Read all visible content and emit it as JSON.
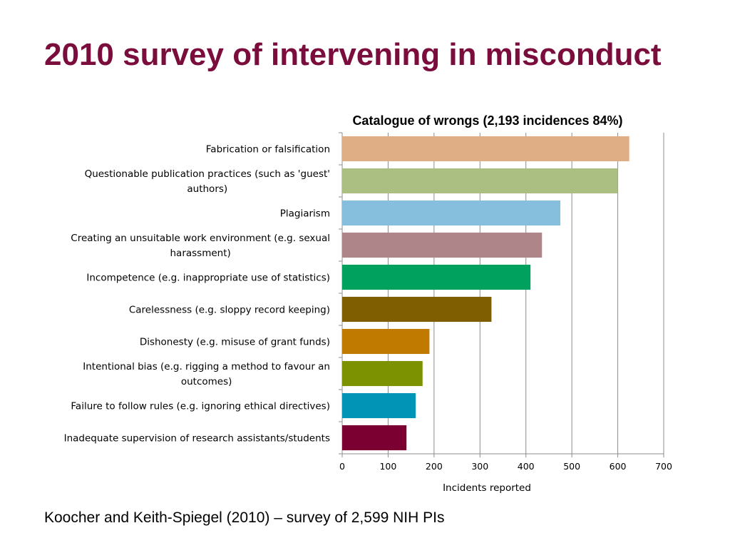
{
  "slide": {
    "title": "2010 survey of intervening in misconduct",
    "footer": "Koocher and Keith-Spiegel (2010) – survey of 2,599 NIH PIs"
  },
  "chart_data": {
    "type": "bar",
    "orientation": "horizontal",
    "title": "Catalogue of wrongs (2,193 incidences 84%)",
    "xlabel": "Incidents reported",
    "ylabel": "",
    "xlim": [
      0,
      700
    ],
    "xticks": [
      0,
      100,
      200,
      300,
      400,
      500,
      600,
      700
    ],
    "grid": "vertical gridlines",
    "legend": "none",
    "categories": [
      [
        "Fabrication or falsification"
      ],
      [
        "Questionable publication practices (such as 'guest'",
        "authors)"
      ],
      [
        "Plagiarism"
      ],
      [
        "Creating an unsuitable work environment (e.g. sexual",
        "harassment)"
      ],
      [
        "Incompetence (e.g. inappropriate use of statistics)"
      ],
      [
        "Carelessness (e.g. sloppy record keeping)"
      ],
      [
        "Dishonesty (e.g. misuse of grant funds)"
      ],
      [
        "Intentional bias (e.g. rigging a method to favour an",
        "outcomes)"
      ],
      [
        "Failure to follow rules (e.g. ignoring ethical directives)"
      ],
      [
        "Inadequate supervision of research assistants/students"
      ]
    ],
    "values": [
      625,
      600,
      475,
      435,
      410,
      325,
      190,
      175,
      160,
      140
    ],
    "colors": [
      "#e0ae84",
      "#acbf82",
      "#86bfdd",
      "#ae8689",
      "#00a05e",
      "#7e5e00",
      "#c17a00",
      "#7c9200",
      "#0294b6",
      "#7b0031"
    ]
  }
}
